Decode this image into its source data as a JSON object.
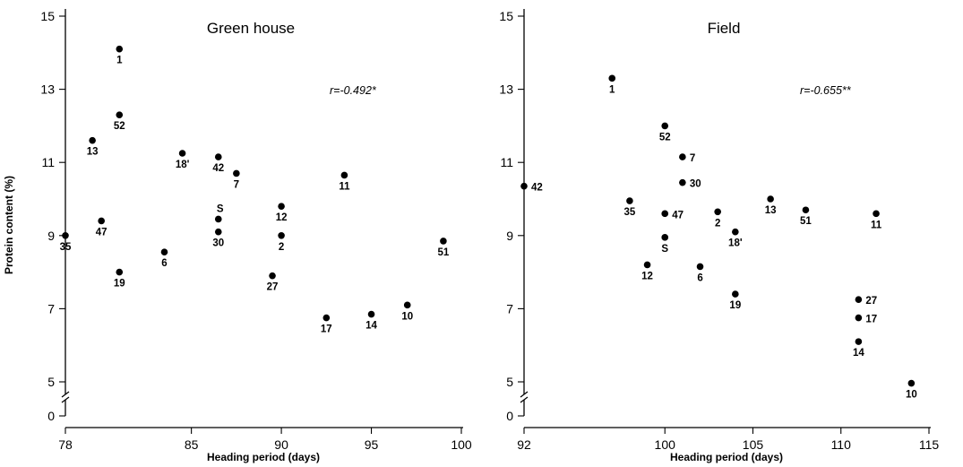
{
  "chart_data": [
    {
      "type": "scatter",
      "title": "Green house",
      "xlabel": "Heading period (days)",
      "ylabel": "Protein content (%)",
      "xlim": [
        78,
        100
      ],
      "ylim": [
        0,
        15
      ],
      "xticks": [
        78,
        85,
        90,
        95,
        100
      ],
      "yticks": [
        0,
        5,
        7,
        9,
        11,
        13,
        15
      ],
      "yaxis_break": true,
      "grid": false,
      "annotation": "r=-0.492*",
      "points": [
        {
          "label": "1",
          "x": 81.0,
          "y": 14.1
        },
        {
          "label": "52",
          "x": 81.0,
          "y": 12.3
        },
        {
          "label": "13",
          "x": 79.5,
          "y": 11.6
        },
        {
          "label": "18'",
          "x": 84.5,
          "y": 11.25
        },
        {
          "label": "42",
          "x": 86.5,
          "y": 11.15
        },
        {
          "label": "7",
          "x": 87.5,
          "y": 10.7
        },
        {
          "label": "11",
          "x": 93.5,
          "y": 10.65
        },
        {
          "label": "12",
          "x": 90.0,
          "y": 9.8
        },
        {
          "label": "S",
          "x": 86.5,
          "y": 9.45
        },
        {
          "label": "47",
          "x": 80.0,
          "y": 9.4
        },
        {
          "label": "30",
          "x": 86.5,
          "y": 9.1
        },
        {
          "label": "35",
          "x": 78.0,
          "y": 9.0
        },
        {
          "label": "2",
          "x": 90.0,
          "y": 9.0
        },
        {
          "label": "51",
          "x": 99.0,
          "y": 8.85
        },
        {
          "label": "6",
          "x": 83.5,
          "y": 8.55
        },
        {
          "label": "19",
          "x": 81.0,
          "y": 8.0
        },
        {
          "label": "27",
          "x": 89.5,
          "y": 7.9
        },
        {
          "label": "10",
          "x": 97.0,
          "y": 7.1
        },
        {
          "label": "14",
          "x": 95.0,
          "y": 6.85
        },
        {
          "label": "17",
          "x": 92.5,
          "y": 6.75
        }
      ]
    },
    {
      "type": "scatter",
      "title": "Field",
      "xlabel": "Heading period (days)",
      "ylabel": "",
      "xlim": [
        92,
        115
      ],
      "ylim": [
        0,
        15
      ],
      "xticks": [
        92,
        100,
        105,
        110,
        115
      ],
      "yticks": [
        0,
        5,
        7,
        9,
        11,
        13,
        15
      ],
      "yaxis_break": true,
      "grid": false,
      "annotation": "r=-0.655**",
      "points": [
        {
          "label": "1",
          "x": 97.0,
          "y": 13.3
        },
        {
          "label": "52",
          "x": 100.0,
          "y": 12.0
        },
        {
          "label": "7",
          "x": 101.0,
          "y": 11.15
        },
        {
          "label": "30",
          "x": 101.0,
          "y": 10.45
        },
        {
          "label": "42",
          "x": 92.0,
          "y": 10.35
        },
        {
          "label": "13",
          "x": 106.0,
          "y": 10.0
        },
        {
          "label": "35",
          "x": 98.0,
          "y": 9.95
        },
        {
          "label": "51",
          "x": 108.0,
          "y": 9.7
        },
        {
          "label": "2",
          "x": 103.0,
          "y": 9.65
        },
        {
          "label": "47",
          "x": 100.0,
          "y": 9.6
        },
        {
          "label": "11",
          "x": 112.0,
          "y": 9.6
        },
        {
          "label": "18'",
          "x": 104.0,
          "y": 9.1
        },
        {
          "label": "S",
          "x": 100.0,
          "y": 8.95
        },
        {
          "label": "12",
          "x": 99.0,
          "y": 8.2
        },
        {
          "label": "6",
          "x": 102.0,
          "y": 8.15
        },
        {
          "label": "19",
          "x": 104.0,
          "y": 7.4
        },
        {
          "label": "27",
          "x": 111.0,
          "y": 7.25
        },
        {
          "label": "17",
          "x": 111.0,
          "y": 6.75
        },
        {
          "label": "14",
          "x": 111.0,
          "y": 6.1
        },
        {
          "label": "10",
          "x": 114.0,
          "y": 4.8
        }
      ]
    }
  ]
}
